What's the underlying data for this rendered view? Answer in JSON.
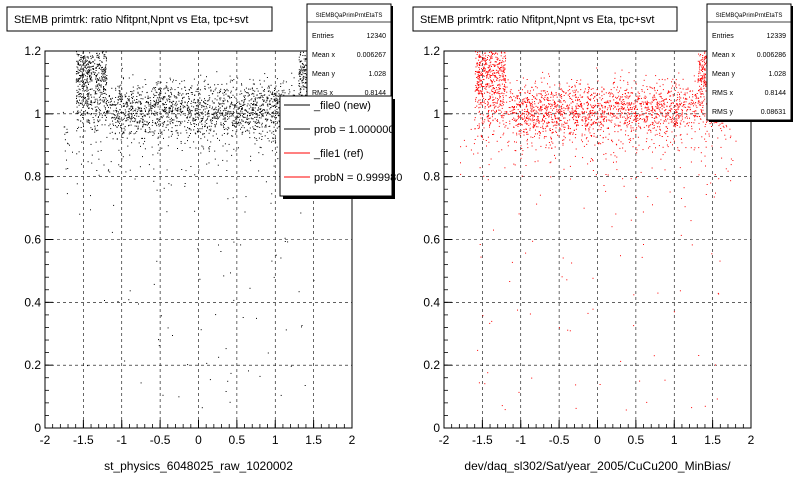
{
  "chart_data": [
    {
      "type": "scatter",
      "title": "StEMB primtrk: ratio Nfitpnt,Npnt vs Eta, tpc+svt",
      "xlabel": "st_physics_6048025_raw_1020002",
      "ylabel": "",
      "xlim": [
        -2,
        2
      ],
      "ylim": [
        0,
        1.2
      ],
      "xticks": [
        "-2",
        "-1.5",
        "-1",
        "-0.5",
        "0",
        "0.5",
        "1",
        "1.5",
        "2"
      ],
      "yticks": [
        "0",
        "0.2",
        "0.4",
        "0.6",
        "0.8",
        "1",
        "1.2"
      ],
      "grid": true,
      "marker_color": "#000000",
      "stats": {
        "name": "StEMBQaPrimPrntEtaTS",
        "entries_label": "Entries",
        "entries": "12340",
        "mean_label": "Mean x",
        "mean_x": "0.006267",
        "meany_label": "Mean y",
        "mean_y": "1.028",
        "rmsx_label": "RMS x",
        "rms_x": "0.8144",
        "rmsy_label": "RMS y",
        "rms_y": "0.08631"
      },
      "legend": {
        "placement": "right",
        "entries": [
          {
            "label": "_file0 (new)",
            "color": "#000000"
          },
          {
            "label": "prob = 1.000000",
            "color": "#000000"
          },
          {
            "label": "_file1 (ref)",
            "color": "#ff0000"
          },
          {
            "label": "probN = 0.999980",
            "color": "#ff0000"
          }
        ]
      },
      "bands": [
        {
          "x_from": -1.6,
          "x_to": 1.7,
          "y_center": 1.02,
          "y_spread": 0.04,
          "weight": 6
        },
        {
          "x_from": -1.1,
          "x_to": 1.1,
          "y_center": 1.0,
          "y_spread": 0.05,
          "weight": 3
        },
        {
          "x_from": -1.6,
          "x_to": -1.2,
          "y_center": 1.13,
          "y_spread": 0.05,
          "weight": 2
        },
        {
          "x_from": 1.3,
          "x_to": 1.7,
          "y_center": 1.13,
          "y_spread": 0.05,
          "weight": 2
        },
        {
          "x_from": -1.8,
          "x_to": 1.8,
          "y_center": 0.9,
          "y_spread": 0.07,
          "weight": 1
        }
      ]
    },
    {
      "type": "scatter",
      "title": "StEMB primtrk: ratio Nfitpnt,Npnt vs Eta, tpc+svt",
      "xlabel": "dev/daq_sl302/Sat/year_2005/CuCu200_MinBias/",
      "ylabel": "",
      "xlim": [
        -2,
        2
      ],
      "ylim": [
        0,
        1.2
      ],
      "xticks": [
        "-2",
        "-1.5",
        "-1",
        "-0.5",
        "0",
        "0.5",
        "1",
        "1.5",
        "2"
      ],
      "yticks": [
        "0",
        "0.2",
        "0.4",
        "0.6",
        "0.8",
        "1",
        "1.2"
      ],
      "grid": true,
      "marker_color": "#ff0000",
      "stats": {
        "name": "StEMBQaPrimPrntEtaTS",
        "entries_label": "Entries",
        "entries": "12339",
        "mean_label": "Mean x",
        "mean_x": "0.006286",
        "meany_label": "Mean y",
        "mean_y": "1.028",
        "rmsx_label": "RMS x",
        "rms_x": "0.8144",
        "rmsy_label": "RMS y",
        "rms_y": "0.08631"
      },
      "legend": null,
      "bands": [
        {
          "x_from": -1.6,
          "x_to": 1.7,
          "y_center": 1.02,
          "y_spread": 0.04,
          "weight": 6
        },
        {
          "x_from": -1.1,
          "x_to": 1.1,
          "y_center": 1.0,
          "y_spread": 0.05,
          "weight": 3
        },
        {
          "x_from": -1.6,
          "x_to": -1.2,
          "y_center": 1.13,
          "y_spread": 0.05,
          "weight": 2
        },
        {
          "x_from": 1.3,
          "x_to": 1.7,
          "y_center": 1.13,
          "y_spread": 0.05,
          "weight": 2
        },
        {
          "x_from": -1.8,
          "x_to": 1.8,
          "y_center": 0.9,
          "y_spread": 0.07,
          "weight": 1
        }
      ]
    }
  ]
}
